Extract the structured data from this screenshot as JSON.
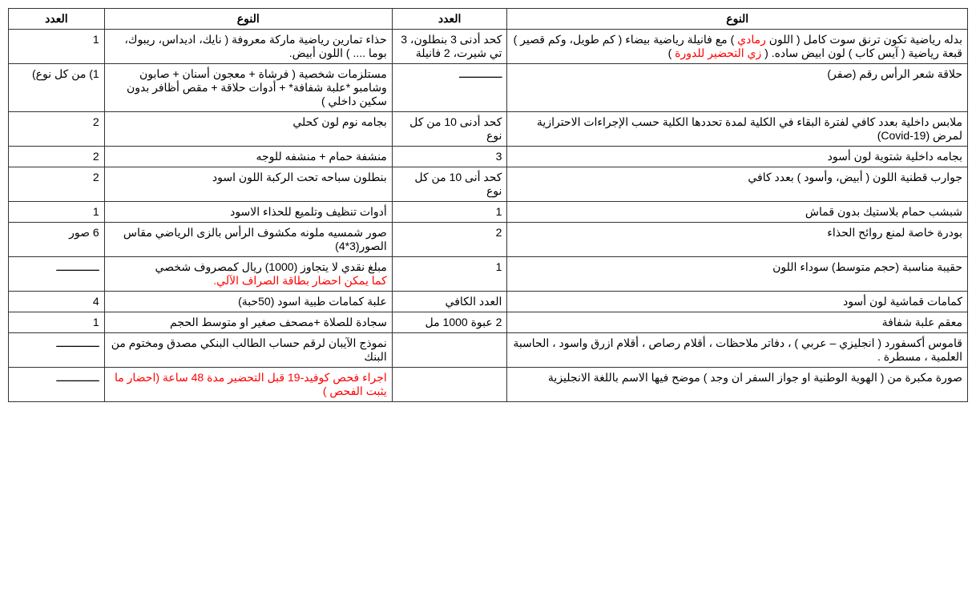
{
  "headers": {
    "type": "النوع",
    "count": "العدد"
  },
  "rows": [
    {
      "type1_pre": "بدله رياضية تكون ترنق سوت كامل ( اللون ",
      "type1_red1": "رمادي",
      "type1_mid": " ) مع فانيلة رياضية بيضاء ( كم طويل، وكم قصير ) قبعة رياضية ( آيس كاب ) لون ابيض ساده. ( ",
      "type1_red2": "زي التحضير للدورة",
      "type1_post": " )",
      "count1": "كحد أدنى 3 بنطلون، 3 تي شيرت، 2 فانيلة",
      "type2": "حذاء تمارين رياضية ماركة معروفة ( نايك، اديداس، ريبوك، بوما .... ) اللون أبيض.",
      "count2": "1"
    },
    {
      "type1": "حلاقة شعر الرأس رقم (صفر)",
      "count1": "ـــــــــــــ",
      "type2": "مستلزمات شخصية ( فرشاة + معجون أسنان + صابون وشامبو *علبة شفافة* + أدوات حلاقة + مقص أظافر بدون سكين داخلي )",
      "count2": "1) من كل نوع)"
    },
    {
      "type1": "ملابس داخلية بعدد كافي لفترة البقاء في الكلية لمدة تحددها الكلية حسب الإجراءات الاحترازية لمرض (Covid-19)",
      "count1": "كحد أدنى 10 من كل نوع",
      "type2": "بجامه نوم لون كحلي",
      "count2": "2"
    },
    {
      "type1": "بجامه داخلية شتوية لون أسود",
      "count1": "3",
      "type2": "منشفة حمام + منشفه للوجه",
      "count2": "2"
    },
    {
      "type1": "جوارب قطنية اللون ( أبيض، وأسود ) بعدد كافي",
      "count1": "كحد أنى 10 من كل نوع",
      "type2": "بنطلون سباحه تحت الركبة اللون اسود",
      "count2": "2"
    },
    {
      "type1": "شبشب حمام بلاستيك بدون قماش",
      "count1": "1",
      "type2": "أدوات تنظيف وتلميع للحذاء الاسود",
      "count2": "1"
    },
    {
      "type1": "بودرة خاصة لمنع روائح الحذاء",
      "count1": "2",
      "type2": "صور شمسيه ملونه مكشوف الرأس بالزى الرياضي مقاس الصور(3*4)",
      "count2": "6 صور"
    },
    {
      "type1": "حقيبة مناسبة (حجم متوسط) سوداء اللون",
      "count1": "1",
      "type2_pre": "مبلغ نقدي لا يتجاوز (1000) ريال كمصروف شخصي",
      "type2_red": "كما يمكن احضار بطاقة الصراف الآلي.",
      "count2": "ـــــــــــــ"
    },
    {
      "type1": "كمامات قماشية لون أسود",
      "count1": "العدد الكافي",
      "type2": "علبة كمامات طبية اسود (50حبة)",
      "count2": "4"
    },
    {
      "type1": "معقم علبة شفافة",
      "count1": "2 عبوة 1000 مل",
      "type2": "سجادة للصلاة +مصحف صغير او متوسط الحجم",
      "count2": "1"
    },
    {
      "type1": "قاموس أكسفورد ( انجليزي – عربي ) ، دفاتر ملاحظات ، أقلام رصاص ، أقلام ازرق واسود ، الحاسبة العلمية ، مسطرة .",
      "count1": "",
      "type2": "نموذج الآيبان لرقم حساب الطالب البنكي مصدق ومختوم من البنك",
      "count2": "ـــــــــــــ"
    },
    {
      "type1": "صورة مكبرة من ( الهوية الوطنية او جواز السفر ان وجد ) موضح فيها الاسم باللغة الانجليزية",
      "count1": "",
      "type2_red_full": "اجراء فحص كوفيد-19 قبل التحضير مدة 48 ساعة (احضار ما يثبت الفحص )",
      "count2": "ـــــــــــــ"
    }
  ]
}
